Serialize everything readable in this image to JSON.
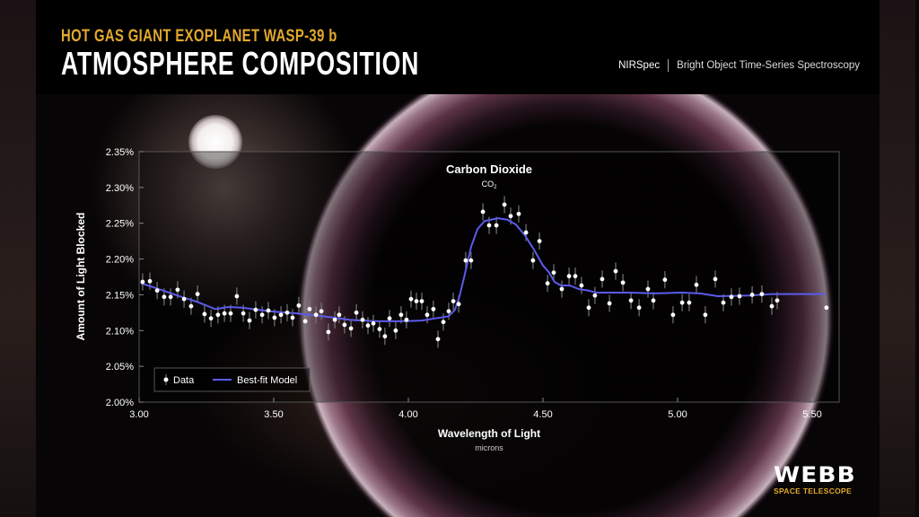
{
  "header": {
    "subtitle": "HOT GAS GIANT EXOPLANET WASP-39 b",
    "title": "ATMOSPHERE COMPOSITION",
    "instrument": "NIRSpec",
    "mode": "Bright Object Time-Series Spectroscopy"
  },
  "logo": {
    "name": "WEBB",
    "tagline": "SPACE TELESCOPE"
  },
  "colors": {
    "accent": "#e3a92c",
    "model_line": "#5b5bea",
    "data_points": "#ffffff"
  },
  "chart_data": {
    "type": "scatter",
    "xlabel": "Wavelength of Light",
    "xunit": "microns",
    "ylabel": "Amount of Light Blocked",
    "xlim": [
      3.0,
      5.6
    ],
    "ylim": [
      2.0,
      2.35
    ],
    "xticks": [
      3.0,
      3.5,
      4.0,
      4.5,
      5.0,
      5.5
    ],
    "xtick_labels": [
      "3.00",
      "3.50",
      "4.00",
      "4.50",
      "5.00",
      "5.50"
    ],
    "yticks": [
      2.0,
      2.05,
      2.1,
      2.15,
      2.2,
      2.25,
      2.3,
      2.35
    ],
    "ytick_labels": [
      "2.00%",
      "2.05%",
      "2.10%",
      "2.15%",
      "2.20%",
      "2.25%",
      "2.30%",
      "2.35%"
    ],
    "grid": false,
    "legend": {
      "position": "bottom-left",
      "entries": [
        "Data",
        "Best-fit Model"
      ]
    },
    "annotation": {
      "label": "Carbon Dioxide",
      "formula": "CO",
      "subscript": "2",
      "x": 4.33
    },
    "series": [
      {
        "name": "Data",
        "kind": "points-with-errorbars",
        "yerr": 0.012,
        "points": [
          [
            3.013,
            2.168
          ],
          [
            3.04,
            2.169
          ],
          [
            3.067,
            2.156
          ],
          [
            3.093,
            2.147
          ],
          [
            3.117,
            2.147
          ],
          [
            3.143,
            2.157
          ],
          [
            3.167,
            2.144
          ],
          [
            3.193,
            2.134
          ],
          [
            3.217,
            2.151
          ],
          [
            3.243,
            2.123
          ],
          [
            3.267,
            2.117
          ],
          [
            3.293,
            2.122
          ],
          [
            3.317,
            2.124
          ],
          [
            3.34,
            2.124
          ],
          [
            3.363,
            2.148
          ],
          [
            3.387,
            2.124
          ],
          [
            3.41,
            2.114
          ],
          [
            3.433,
            2.129
          ],
          [
            3.457,
            2.122
          ],
          [
            3.48,
            2.128
          ],
          [
            3.503,
            2.118
          ],
          [
            3.527,
            2.122
          ],
          [
            3.55,
            2.125
          ],
          [
            3.57,
            2.118
          ],
          [
            3.593,
            2.135
          ],
          [
            3.617,
            2.113
          ],
          [
            3.633,
            2.13
          ],
          [
            3.657,
            2.122
          ],
          [
            3.677,
            2.127
          ],
          [
            3.703,
            2.098
          ],
          [
            3.727,
            2.115
          ],
          [
            3.743,
            2.122
          ],
          [
            3.763,
            2.108
          ],
          [
            3.787,
            2.103
          ],
          [
            3.807,
            2.125
          ],
          [
            3.83,
            2.115
          ],
          [
            3.85,
            2.107
          ],
          [
            3.87,
            2.11
          ],
          [
            3.893,
            2.102
          ],
          [
            3.913,
            2.092
          ],
          [
            3.93,
            2.117
          ],
          [
            3.953,
            2.1
          ],
          [
            3.973,
            2.122
          ],
          [
            3.993,
            2.115
          ],
          [
            4.01,
            2.144
          ],
          [
            4.03,
            2.141
          ],
          [
            4.05,
            2.141
          ],
          [
            4.07,
            2.122
          ],
          [
            4.093,
            2.13
          ],
          [
            4.11,
            2.088
          ],
          [
            4.13,
            2.112
          ],
          [
            4.15,
            2.127
          ],
          [
            4.167,
            2.141
          ],
          [
            4.187,
            2.137
          ],
          [
            4.213,
            2.198
          ],
          [
            4.233,
            2.198
          ],
          [
            4.277,
            2.266
          ],
          [
            4.3,
            2.247
          ],
          [
            4.327,
            2.247
          ],
          [
            4.357,
            2.276
          ],
          [
            4.38,
            2.26
          ],
          [
            4.41,
            2.263
          ],
          [
            4.437,
            2.237
          ],
          [
            4.463,
            2.198
          ],
          [
            4.487,
            2.225
          ],
          [
            4.517,
            2.166
          ],
          [
            4.54,
            2.181
          ],
          [
            4.57,
            2.158
          ],
          [
            4.597,
            2.176
          ],
          [
            4.62,
            2.176
          ],
          [
            4.643,
            2.163
          ],
          [
            4.67,
            2.132
          ],
          [
            4.693,
            2.149
          ],
          [
            4.72,
            2.172
          ],
          [
            4.747,
            2.138
          ],
          [
            4.77,
            2.183
          ],
          [
            4.797,
            2.167
          ],
          [
            4.827,
            2.142
          ],
          [
            4.857,
            2.132
          ],
          [
            4.89,
            2.158
          ],
          [
            4.91,
            2.142
          ],
          [
            4.953,
            2.171
          ],
          [
            4.983,
            2.122
          ],
          [
            5.017,
            2.139
          ],
          [
            5.043,
            2.139
          ],
          [
            5.07,
            2.164
          ],
          [
            5.103,
            2.122
          ],
          [
            5.14,
            2.172
          ],
          [
            5.17,
            2.139
          ],
          [
            5.2,
            2.147
          ],
          [
            5.23,
            2.148
          ],
          [
            5.277,
            2.15
          ],
          [
            5.313,
            2.151
          ],
          [
            5.35,
            2.134
          ],
          [
            5.37,
            2.142
          ],
          [
            5.553,
            2.132
          ]
        ]
      },
      {
        "name": "Best-fit Model",
        "kind": "line",
        "points": [
          [
            3.007,
            2.166
          ],
          [
            3.05,
            2.161
          ],
          [
            3.15,
            2.148
          ],
          [
            3.217,
            2.14
          ],
          [
            3.283,
            2.13
          ],
          [
            3.333,
            2.133
          ],
          [
            3.383,
            2.132
          ],
          [
            3.483,
            2.127
          ],
          [
            3.583,
            2.124
          ],
          [
            3.683,
            2.12
          ],
          [
            3.783,
            2.115
          ],
          [
            3.883,
            2.113
          ],
          [
            3.983,
            2.113
          ],
          [
            4.05,
            2.114
          ],
          [
            4.117,
            2.118
          ],
          [
            4.15,
            2.12
          ],
          [
            4.173,
            2.129
          ],
          [
            4.19,
            2.148
          ],
          [
            4.21,
            2.179
          ],
          [
            4.233,
            2.217
          ],
          [
            4.257,
            2.242
          ],
          [
            4.283,
            2.253
          ],
          [
            4.333,
            2.257
          ],
          [
            4.367,
            2.255
          ],
          [
            4.4,
            2.248
          ],
          [
            4.433,
            2.233
          ],
          [
            4.467,
            2.213
          ],
          [
            4.5,
            2.191
          ],
          [
            4.523,
            2.181
          ],
          [
            4.543,
            2.168
          ],
          [
            4.567,
            2.163
          ],
          [
            4.6,
            2.163
          ],
          [
            4.633,
            2.158
          ],
          [
            4.667,
            2.156
          ],
          [
            4.7,
            2.153
          ],
          [
            4.75,
            2.153
          ],
          [
            4.817,
            2.153
          ],
          [
            4.917,
            2.152
          ],
          [
            5.017,
            2.153
          ],
          [
            5.083,
            2.152
          ],
          [
            5.15,
            2.148
          ],
          [
            5.267,
            2.149
          ],
          [
            5.35,
            2.151
          ],
          [
            5.417,
            2.151
          ],
          [
            5.55,
            2.151
          ]
        ]
      }
    ]
  }
}
